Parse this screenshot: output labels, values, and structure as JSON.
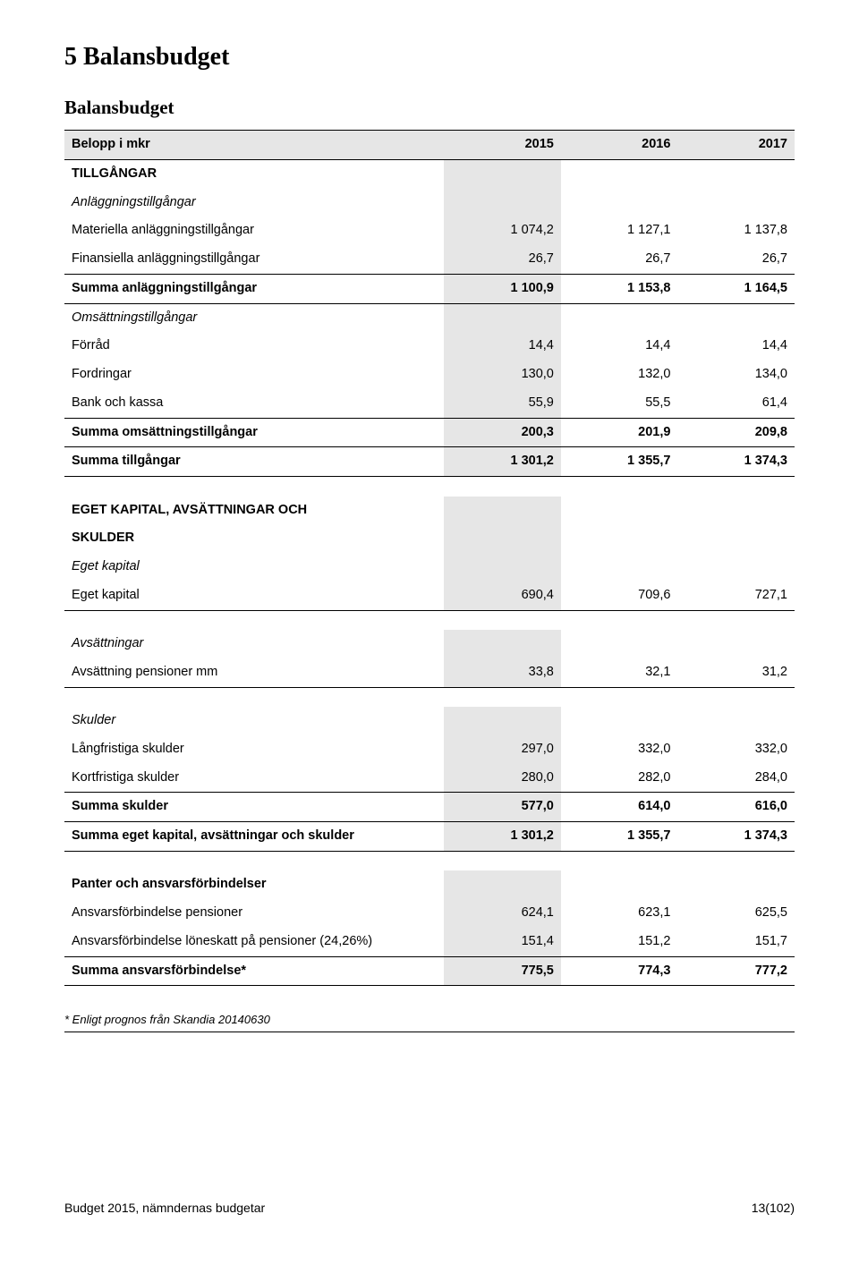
{
  "page": {
    "title": "5 Balansbudget",
    "subtitle": "Balansbudget"
  },
  "table": {
    "header": {
      "c0": "Belopp i mkr",
      "c1": "2015",
      "c2": "2016",
      "c3": "2017"
    },
    "assetsHeader": "TILLGÅNGAR",
    "fixedAssetsHeader": "Anläggningstillgångar",
    "rows": {
      "materiella": {
        "label": "Materiella anläggningstillgångar",
        "v1": "1 074,2",
        "v2": "1 127,1",
        "v3": "1 137,8"
      },
      "finansiella": {
        "label": "Finansiella anläggningstillgångar",
        "v1": "26,7",
        "v2": "26,7",
        "v3": "26,7"
      },
      "summaAnl": {
        "label": "Summa anläggningstillgångar",
        "v1": "1 100,9",
        "v2": "1 153,8",
        "v3": "1 164,5"
      },
      "omsHeader": "Omsättningstillgångar",
      "forrad": {
        "label": "Förråd",
        "v1": "14,4",
        "v2": "14,4",
        "v3": "14,4"
      },
      "fordringar": {
        "label": "Fordringar",
        "v1": "130,0",
        "v2": "132,0",
        "v3": "134,0"
      },
      "bank": {
        "label": "Bank och kassa",
        "v1": "55,9",
        "v2": "55,5",
        "v3": "61,4"
      },
      "summaOms": {
        "label": "Summa omsättningstillgångar",
        "v1": "200,3",
        "v2": "201,9",
        "v3": "209,8"
      },
      "summaTill": {
        "label": "Summa tillgångar",
        "v1": "1 301,2",
        "v2": "1 355,7",
        "v3": "1 374,3"
      },
      "ekHeader1": "EGET KAPITAL, AVSÄTTNINGAR OCH",
      "ekHeader2": "SKULDER",
      "egetKapHeader": "Eget kapital",
      "egetKap": {
        "label": "Eget kapital",
        "v1": "690,4",
        "v2": "709,6",
        "v3": "727,1"
      },
      "avsHeader": "Avsättningar",
      "avsPension": {
        "label": "Avsättning pensioner mm",
        "v1": "33,8",
        "v2": "32,1",
        "v3": "31,2"
      },
      "skulderHeader": "Skulder",
      "langSkuld": {
        "label": "Långfristiga skulder",
        "v1": "297,0",
        "v2": "332,0",
        "v3": "332,0"
      },
      "kortSkuld": {
        "label": "Kortfristiga skulder",
        "v1": "280,0",
        "v2": "282,0",
        "v3": "284,0"
      },
      "summaSkuld": {
        "label": "Summa skulder",
        "v1": "577,0",
        "v2": "614,0",
        "v3": "616,0"
      },
      "summaEget": {
        "label": "Summa eget kapital, avsättningar och skulder",
        "v1": "1 301,2",
        "v2": "1 355,7",
        "v3": "1 374,3"
      },
      "panterHeader": "Panter och ansvarsförbindelser",
      "ansvPension": {
        "label": "Ansvarsförbindelse pensioner",
        "v1": "624,1",
        "v2": "623,1",
        "v3": "625,5"
      },
      "ansvLone": {
        "label": "Ansvarsförbindelse löneskatt på pensioner (24,26%)",
        "v1": "151,4",
        "v2": "151,2",
        "v3": "151,7"
      },
      "summaAnsv": {
        "label": "Summa ansvarsförbindelse*",
        "v1": "775,5",
        "v2": "774,3",
        "v3": "777,2"
      }
    }
  },
  "footnote": "* Enligt prognos från Skandia 20140630",
  "footer": {
    "left": "Budget 2015, nämndernas budgetar",
    "right": "13(102)"
  },
  "colors": {
    "shaded": "#e6e6e6",
    "text": "#000000",
    "background": "#ffffff",
    "rule": "#000000"
  }
}
